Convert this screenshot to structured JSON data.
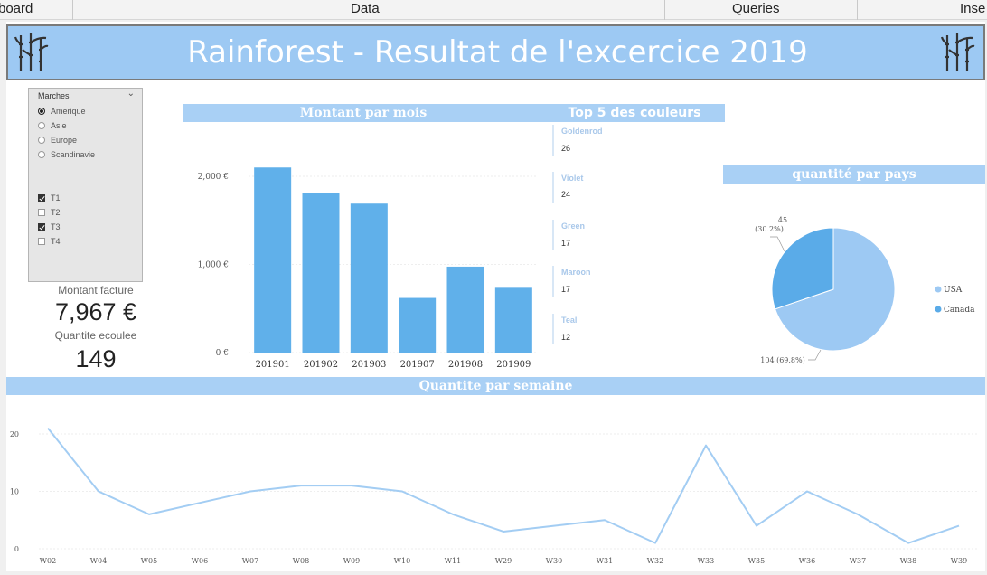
{
  "menu": {
    "tabs": [
      "board",
      "Data",
      "Queries",
      "Inse"
    ]
  },
  "header": {
    "title": "Rainforest - Resultat de l'excercice 2019"
  },
  "slicer": {
    "title": "Marches",
    "markets": [
      {
        "label": "Amerique",
        "selected": true
      },
      {
        "label": "Asie",
        "selected": false
      },
      {
        "label": "Europe",
        "selected": false
      },
      {
        "label": "Scandinavie",
        "selected": false
      }
    ],
    "quarters": [
      {
        "label": "T1",
        "checked": true
      },
      {
        "label": "T2",
        "checked": false
      },
      {
        "label": "T3",
        "checked": true
      },
      {
        "label": "T4",
        "checked": false
      }
    ]
  },
  "kpis": {
    "invoice_label": "Montant facture",
    "invoice_value": "7,967 €",
    "quantity_label": "Quantite ecoulee",
    "quantity_value": "149"
  },
  "top5": {
    "title": "Top 5 des couleurs",
    "items": [
      {
        "name": "Goldenrod",
        "value": "26"
      },
      {
        "name": "Violet",
        "value": "24"
      },
      {
        "name": "Green",
        "value": "17"
      },
      {
        "name": "Maroon",
        "value": "17"
      },
      {
        "name": "Teal",
        "value": "12"
      }
    ]
  },
  "colors": {
    "accent": "#a9d0f5",
    "bar": "#60b0ea",
    "line": "#a3cdf3",
    "pie_usa": "#9dc9f3",
    "pie_canada": "#5aabe8"
  },
  "chart_data": [
    {
      "type": "bar",
      "title": "Montant par mois",
      "categories": [
        "201901",
        "201902",
        "201903",
        "201907",
        "201908",
        "201909"
      ],
      "values": [
        2100,
        1810,
        1690,
        620,
        975,
        735
      ],
      "ylim": [
        0,
        2000
      ],
      "yticks": [
        "0 €",
        "1,000 €",
        "2,000 €"
      ]
    },
    {
      "type": "pie",
      "title": "quantité par pays",
      "slices": [
        {
          "label": "USA",
          "value": 104,
          "text": "104 (69.8%)"
        },
        {
          "label": "Canada",
          "value": 45,
          "text": "45 (30.2%)"
        }
      ],
      "legend": "right"
    },
    {
      "type": "line",
      "title": "Quantite par semaine",
      "categories": [
        "W02",
        "W04",
        "W05",
        "W06",
        "W07",
        "W08",
        "W09",
        "W10",
        "W11",
        "W29",
        "W30",
        "W31",
        "W32",
        "W33",
        "W35",
        "W36",
        "W37",
        "W38",
        "W39"
      ],
      "values": [
        21,
        10,
        6,
        8,
        10,
        11,
        11,
        10,
        6,
        3,
        4,
        5,
        1,
        18,
        4,
        10,
        6,
        1,
        4
      ],
      "ylim": [
        0,
        20
      ],
      "yticks": [
        "0",
        "10",
        "20"
      ]
    }
  ]
}
